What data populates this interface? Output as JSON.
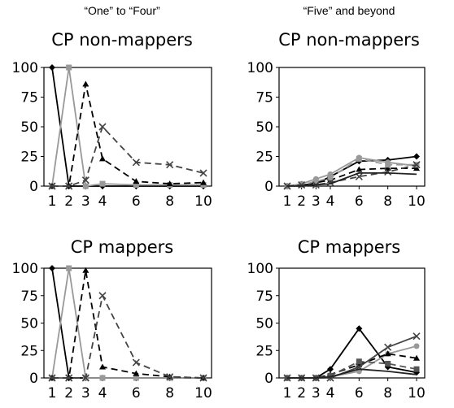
{
  "column_headers": [
    "“One” to “Four”",
    "“Five” and beyond"
  ],
  "chart_data": [
    {
      "type": "line",
      "column": 0,
      "title": "CP non-mappers",
      "x": [
        1,
        2,
        3,
        4,
        6,
        8,
        10
      ],
      "x_ticks": [
        "1",
        "2",
        "3",
        "4",
        "6",
        "8",
        "10"
      ],
      "y_ticks": [
        "0",
        "25",
        "50",
        "75",
        "100"
      ],
      "ylim": [
        0,
        100
      ],
      "series": [
        {
          "color": "#000000",
          "dash": "solid",
          "marker": "diamond",
          "values": [
            100,
            0,
            0,
            0,
            0,
            0,
            0
          ]
        },
        {
          "color": "#999999",
          "dash": "solid",
          "marker": "square",
          "values": [
            0,
            100,
            0,
            2,
            1,
            1,
            1
          ]
        },
        {
          "color": "#000000",
          "dash": "dashed",
          "marker": "triangle",
          "values": [
            0,
            0,
            86,
            23,
            4,
            2,
            3
          ]
        },
        {
          "color": "#444444",
          "dash": "dashed",
          "marker": "x",
          "values": [
            0,
            0,
            5,
            50,
            20,
            18,
            11
          ]
        }
      ]
    },
    {
      "type": "line",
      "column": 1,
      "title": "CP non-mappers",
      "x": [
        1,
        2,
        3,
        4,
        6,
        8,
        10
      ],
      "x_ticks": [
        "1",
        "2",
        "3",
        "4",
        "6",
        "8",
        "10"
      ],
      "y_ticks": [
        "0",
        "25",
        "50",
        "75",
        "100"
      ],
      "ylim": [
        0,
        100
      ],
      "series": [
        {
          "color": "#000000",
          "dash": "solid",
          "marker": "diamond",
          "values": [
            0,
            1,
            2,
            8,
            21,
            22,
            25
          ]
        },
        {
          "color": "#999999",
          "dash": "solid",
          "marker": "circle",
          "values": [
            0,
            2,
            6,
            10,
            24,
            20,
            17
          ]
        },
        {
          "color": "#000000",
          "dash": "dashed",
          "marker": "triangle",
          "values": [
            0,
            1,
            3,
            5,
            14,
            15,
            15
          ]
        },
        {
          "color": "#999999",
          "dash": "dashed",
          "marker": "square",
          "values": [
            0,
            1,
            4,
            7,
            23,
            18,
            18
          ]
        },
        {
          "color": "#444444",
          "dash": "dashed",
          "marker": "x",
          "values": [
            0,
            1,
            1,
            3,
            8,
            12,
            18
          ]
        },
        {
          "color": "#222222",
          "dash": "solid",
          "marker": "none",
          "values": [
            0,
            0,
            1,
            2,
            11,
            11,
            10
          ]
        }
      ]
    },
    {
      "type": "line",
      "column": 0,
      "title": "CP mappers",
      "x": [
        1,
        2,
        3,
        4,
        6,
        8,
        10
      ],
      "x_ticks": [
        "1",
        "2",
        "3",
        "4",
        "6",
        "8",
        "10"
      ],
      "y_ticks": [
        "0",
        "25",
        "50",
        "75",
        "100"
      ],
      "ylim": [
        0,
        100
      ],
      "series": [
        {
          "color": "#000000",
          "dash": "solid",
          "marker": "diamond",
          "values": [
            100,
            0,
            0,
            0,
            0,
            0,
            0
          ]
        },
        {
          "color": "#999999",
          "dash": "solid",
          "marker": "square",
          "values": [
            0,
            100,
            0,
            0,
            0,
            0,
            0
          ]
        },
        {
          "color": "#000000",
          "dash": "dashed",
          "marker": "triangle",
          "values": [
            0,
            0,
            98,
            10,
            4,
            1,
            0
          ]
        },
        {
          "color": "#444444",
          "dash": "dashed",
          "marker": "x",
          "values": [
            0,
            0,
            0,
            75,
            14,
            1,
            0
          ]
        }
      ]
    },
    {
      "type": "line",
      "column": 1,
      "title": "CP mappers",
      "x": [
        1,
        2,
        3,
        4,
        6,
        8,
        10
      ],
      "x_ticks": [
        "1",
        "2",
        "3",
        "4",
        "6",
        "8",
        "10"
      ],
      "y_ticks": [
        "0",
        "25",
        "50",
        "75",
        "100"
      ],
      "ylim": [
        0,
        100
      ],
      "series": [
        {
          "color": "#000000",
          "dash": "solid",
          "marker": "diamond",
          "values": [
            0,
            0,
            0,
            8,
            45,
            10,
            5
          ]
        },
        {
          "color": "#999999",
          "dash": "solid",
          "marker": "circle",
          "values": [
            0,
            0,
            0,
            1,
            6,
            22,
            29
          ]
        },
        {
          "color": "#000000",
          "dash": "dashed",
          "marker": "triangle",
          "values": [
            0,
            0,
            0,
            3,
            12,
            22,
            18
          ]
        },
        {
          "color": "#555555",
          "dash": "dashed",
          "marker": "square",
          "values": [
            0,
            0,
            0,
            2,
            15,
            13,
            8
          ]
        },
        {
          "color": "#444444",
          "dash": "solid",
          "marker": "x",
          "values": [
            0,
            0,
            0,
            0,
            10,
            28,
            38
          ]
        },
        {
          "color": "#222222",
          "dash": "solid",
          "marker": "none",
          "values": [
            0,
            0,
            0,
            1,
            8,
            6,
            3
          ]
        }
      ]
    }
  ]
}
